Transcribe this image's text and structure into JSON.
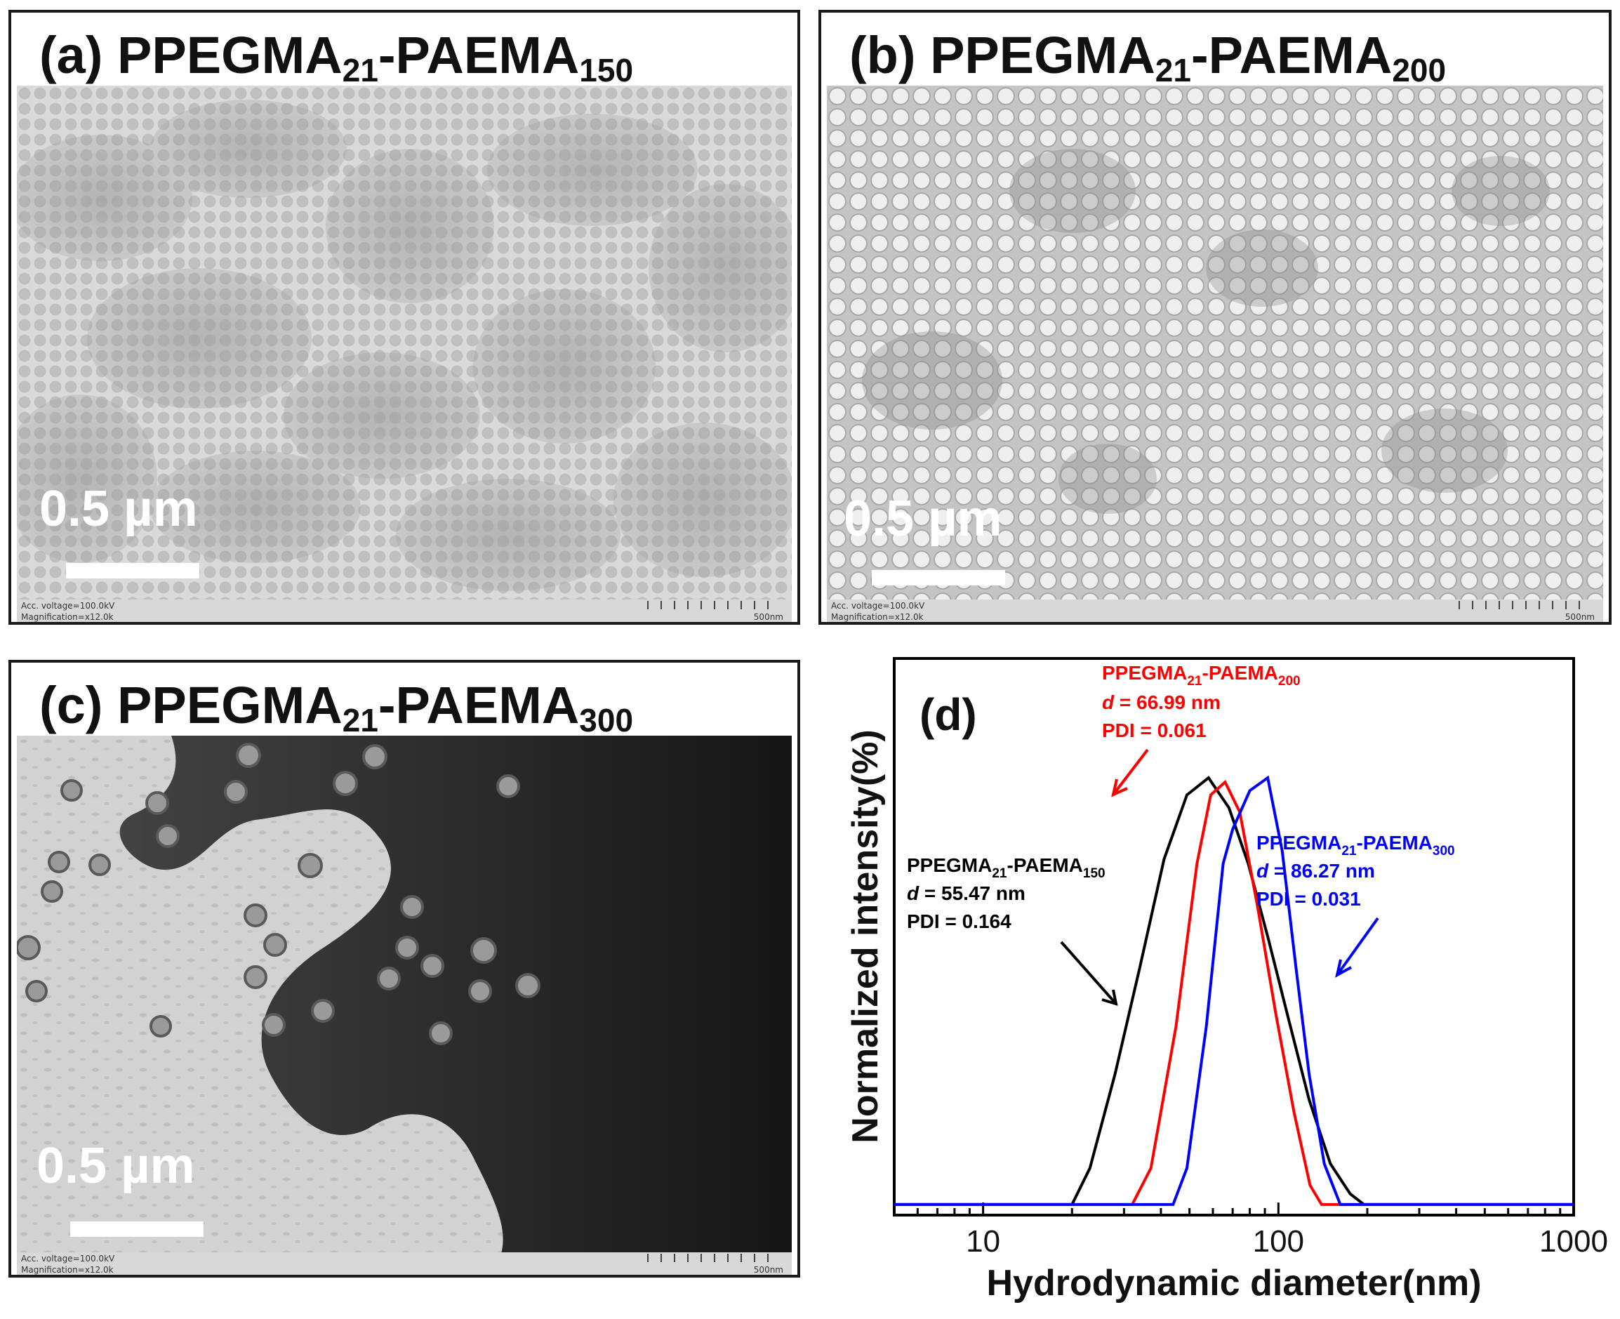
{
  "panels": {
    "a": {
      "letter": "(a)",
      "name_prefix": "PPEGMA",
      "sub1": "21",
      "name_mid": "-PAEMA",
      "sub2": "150",
      "scale_text": "0.5 µm",
      "acc_voltage": "Acc. voltage=100.0kV",
      "magnification": "Magnification=x12.0k",
      "bar_text": "500nm"
    },
    "b": {
      "letter": "(b)",
      "name_prefix": "PPEGMA",
      "sub1": "21",
      "name_mid": "-PAEMA",
      "sub2": "200",
      "scale_text": "0.5 µm",
      "acc_voltage": "Acc. voltage=100.0kV",
      "magnification": "Magnification=x12.0k",
      "bar_text": "500nm"
    },
    "c": {
      "letter": "(c)",
      "name_prefix": "PPEGMA",
      "sub1": "21",
      "name_mid": "-PAEMA",
      "sub2": "300",
      "scale_text": "0.5 µm",
      "acc_voltage": "Acc. voltage=100.0kV",
      "magnification": "Magnification=x12.0k",
      "bar_text": "500nm"
    }
  },
  "colors": {
    "black_series": "#000000",
    "red_series": "#ff0000",
    "blue_series": "#0000ff"
  },
  "chart_data": {
    "type": "line",
    "panel_label": "(d)",
    "xlabel": "Hydrodynamic diameter(nm)",
    "ylabel": "Normalized intensity(%)",
    "x_scale": "log",
    "xlim": [
      5,
      1000
    ],
    "ylim": [
      0,
      1.05
    ],
    "x_ticks": [
      10,
      100,
      1000
    ],
    "x_tick_labels": [
      "10",
      "100",
      "1000"
    ],
    "grid": false,
    "series": [
      {
        "name": "PPEGMA21-PAEMA150",
        "color": "#000000",
        "points": [
          [
            5,
            0.005
          ],
          [
            20,
            0.005
          ],
          [
            23,
            0.09
          ],
          [
            28,
            0.31
          ],
          [
            34,
            0.56
          ],
          [
            41,
            0.81
          ],
          [
            49,
            0.96
          ],
          [
            58,
            1.0
          ],
          [
            68,
            0.93
          ],
          [
            79,
            0.8
          ],
          [
            92,
            0.63
          ],
          [
            108,
            0.44
          ],
          [
            127,
            0.25
          ],
          [
            150,
            0.1
          ],
          [
            175,
            0.03
          ],
          [
            195,
            0.005
          ],
          [
            1000,
            0.005
          ]
        ],
        "label_name": "PPEGMA",
        "label_sub1": "21",
        "label_mid": "-PAEMA",
        "label_sub2": "150",
        "d_value": " = 55.47 nm",
        "pdi": "PDI = 0.164"
      },
      {
        "name": "PPEGMA21-PAEMA200",
        "color": "#ff0000",
        "points": [
          [
            5,
            0.005
          ],
          [
            32,
            0.005
          ],
          [
            37,
            0.09
          ],
          [
            45,
            0.42
          ],
          [
            53,
            0.8
          ],
          [
            59,
            0.96
          ],
          [
            66,
            0.99
          ],
          [
            74,
            0.92
          ],
          [
            85,
            0.7
          ],
          [
            98,
            0.45
          ],
          [
            113,
            0.22
          ],
          [
            128,
            0.05
          ],
          [
            140,
            0.005
          ],
          [
            1000,
            0.005
          ]
        ],
        "label_name": "PPEGMA",
        "label_sub1": "21",
        "label_mid": "-PAEMA",
        "label_sub2": "200",
        "d_value": " = 66.99 nm",
        "pdi": "PDI = 0.061"
      },
      {
        "name": "PPEGMA21-PAEMA300",
        "color": "#0000ff",
        "points": [
          [
            5,
            0.005
          ],
          [
            44,
            0.005
          ],
          [
            49,
            0.09
          ],
          [
            57,
            0.42
          ],
          [
            65,
            0.8
          ],
          [
            70,
            0.88
          ],
          [
            80,
            0.97
          ],
          [
            92,
            1.0
          ],
          [
            103,
            0.83
          ],
          [
            115,
            0.55
          ],
          [
            127,
            0.31
          ],
          [
            143,
            0.1
          ],
          [
            162,
            0.005
          ],
          [
            1000,
            0.005
          ]
        ],
        "label_name": "PPEGMA",
        "label_sub1": "21",
        "label_mid": "-PAEMA",
        "label_sub2": "300",
        "d_value": " = 86.27 nm",
        "pdi": "PDI = 0.031"
      }
    ]
  }
}
